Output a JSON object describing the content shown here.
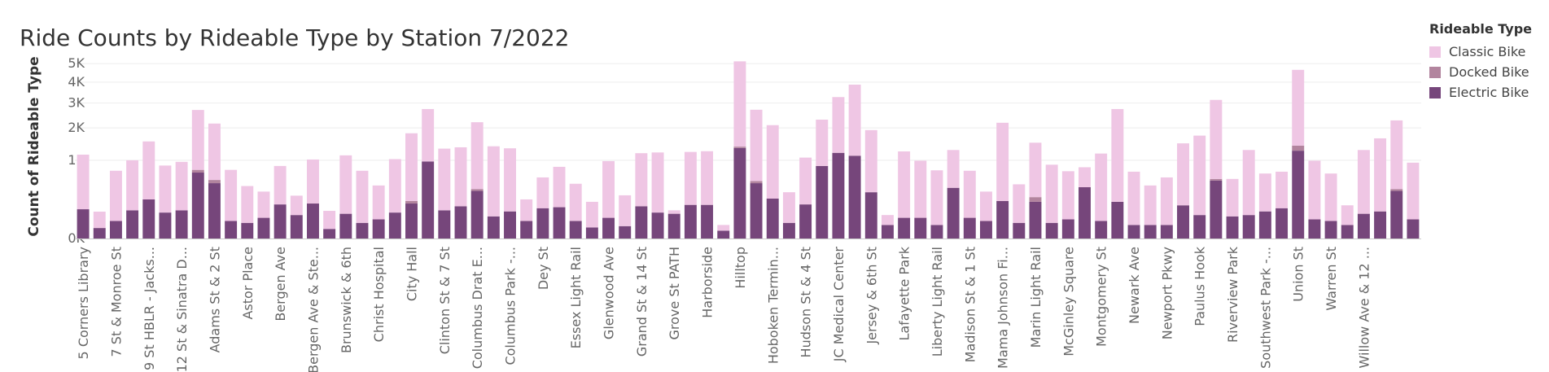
{
  "chart_data": {
    "type": "bar",
    "stacked": true,
    "title": "Ride Counts by Rideable Type by Station 7/2022",
    "ylabel": "Count of Rideable Type",
    "xlabel": "",
    "yscale": "sqrt",
    "ylim": [
      0,
      5100
    ],
    "yticks": [
      0,
      1000,
      2000,
      3000,
      4000,
      5000
    ],
    "ytick_labels": [
      "0K",
      "1K",
      "2K",
      "3K",
      "4K",
      "5K"
    ],
    "grid": true,
    "legend": {
      "title": "Rideable Type",
      "position": "top-right"
    },
    "label_stations": [
      "5 Corners Library",
      "7 St & Monroe St",
      "9 St HBLR - Jacks...",
      "12 St & Sinatra D...",
      "Adams St & 2 St",
      "Astor Place",
      "Bergen Ave",
      "Bergen Ave & Ste...",
      "Brunswick & 6th",
      "Christ Hospital",
      "City Hall",
      "Clinton St & 7 St",
      "Columbus Drat E...",
      "Columbus Park -...",
      "Dey St",
      "Essex Light Rail",
      "Glenwood Ave",
      "Grand St & 14 St",
      "Grove St PATH",
      "Harborside",
      "Hilltop",
      "Hoboken Termin...",
      "Hudson St & 4 St",
      "JC Medical Center",
      "Jersey & 6th St",
      "Lafayette Park",
      "Liberty Light Rail",
      "Madison St & 1 St",
      "Mama Johnson Fi...",
      "Marin Light Rail",
      "McGinley Square",
      "Montgomery St",
      "Newark Ave",
      "Newport Pkwy",
      "Paulus Hook",
      "Riverview Park",
      "Southwest Park -...",
      "Union St",
      "Warren St",
      "Willow Ave & 12 ..."
    ],
    "series": [
      {
        "name": "Electric Bike",
        "color": "#76467b",
        "values": [
          140,
          18,
          50,
          130,
          250,
          110,
          130,
          710,
          500,
          50,
          40,
          70,
          190,
          90,
          200,
          15,
          100,
          40,
          60,
          110,
          200,
          970,
          130,
          170,
          370,
          80,
          120,
          50,
          150,
          160,
          50,
          20,
          70,
          25,
          170,
          110,
          100,
          185,
          185,
          10,
          1340,
          500,
          260,
          40,
          190,
          860,
          1200,
          1120,
          350,
          30,
          70,
          70,
          30,
          420,
          70,
          50,
          230,
          40,
          220,
          40,
          60,
          430,
          50,
          220,
          30,
          30,
          30,
          180,
          90,
          550,
          80,
          90,
          120,
          150,
          1260,
          60,
          50,
          30,
          100,
          120,
          370,
          60
        ]
      },
      {
        "name": "Docked Bike",
        "color": "#b2849e",
        "values": [
          0,
          0,
          0,
          0,
          0,
          0,
          0,
          60,
          60,
          0,
          0,
          0,
          0,
          0,
          0,
          0,
          0,
          0,
          0,
          0,
          30,
          0,
          0,
          0,
          30,
          0,
          0,
          0,
          0,
          0,
          0,
          0,
          0,
          0,
          0,
          0,
          0,
          0,
          0,
          0,
          40,
          40,
          0,
          0,
          0,
          0,
          0,
          0,
          0,
          0,
          0,
          0,
          0,
          0,
          0,
          0,
          0,
          0,
          60,
          0,
          0,
          0,
          0,
          0,
          0,
          0,
          0,
          0,
          0,
          30,
          0,
          0,
          0,
          0,
          150,
          0,
          0,
          0,
          0,
          0,
          30,
          0
        ]
      },
      {
        "name": "Classic Bike",
        "color": "#efc6e4",
        "values": [
          1010,
          100,
          700,
          870,
          1290,
          760,
          830,
          1930,
          1600,
          720,
          410,
          290,
          670,
          210,
          820,
          110,
          1030,
          710,
          400,
          920,
          1580,
          1770,
          1190,
          1190,
          1810,
          1310,
          1210,
          200,
          460,
          680,
          440,
          200,
          910,
          280,
          1020,
          1100,
          30,
          1040,
          1060,
          20,
          3750,
          2170,
          1840,
          310,
          880,
          1450,
          2070,
          2750,
          1570,
          60,
          1170,
          920,
          730,
          860,
          680,
          310,
          1960,
          440,
          1220,
          850,
          680,
          400,
          1130,
          2520,
          700,
          430,
          580,
          1300,
          1640,
          2560,
          500,
          1190,
          570,
          580,
          3240,
          930,
          640,
          150,
          1180,
          1520,
          1880,
          880
        ]
      }
    ]
  }
}
